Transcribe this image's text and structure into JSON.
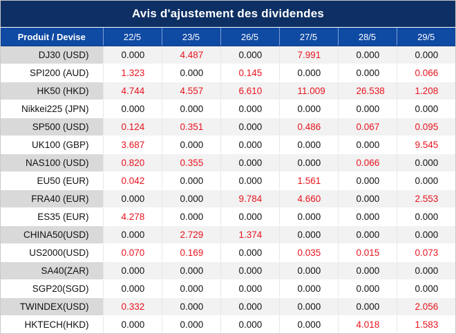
{
  "title": "Avis d'ajustement des dividendes",
  "columns": {
    "product": "Produit / Devise",
    "dates": [
      "22/5",
      "23/5",
      "26/5",
      "27/5",
      "28/5",
      "29/5"
    ]
  },
  "colors": {
    "title_bg": "#0d2f63",
    "header_bg": "#0f4aa3",
    "nonzero_value": "#e8131d",
    "zero_value": "#111111"
  },
  "rows": [
    {
      "product": "DJ30 (USD)",
      "values": [
        "0.000",
        "4.487",
        "0.000",
        "7.991",
        "0.000",
        "0.000"
      ]
    },
    {
      "product": "SPI200 (AUD)",
      "values": [
        "1.323",
        "0.000",
        "0.145",
        "0.000",
        "0.000",
        "0.066"
      ]
    },
    {
      "product": "HK50 (HKD)",
      "values": [
        "4.744",
        "4.557",
        "6.610",
        "11.009",
        "26.538",
        "1.208"
      ]
    },
    {
      "product": "Nikkei225 (JPN)",
      "values": [
        "0.000",
        "0.000",
        "0.000",
        "0.000",
        "0.000",
        "0.000"
      ]
    },
    {
      "product": "SP500 (USD)",
      "values": [
        "0.124",
        "0.351",
        "0.000",
        "0.486",
        "0.067",
        "0.095"
      ]
    },
    {
      "product": "UK100 (GBP)",
      "values": [
        "3.687",
        "0.000",
        "0.000",
        "0.000",
        "0.000",
        "9.545"
      ]
    },
    {
      "product": "NAS100 (USD)",
      "values": [
        "0.820",
        "0.355",
        "0.000",
        "0.000",
        "0.066",
        "0.000"
      ]
    },
    {
      "product": "EU50 (EUR)",
      "values": [
        "0.042",
        "0.000",
        "0.000",
        "1.561",
        "0.000",
        "0.000"
      ]
    },
    {
      "product": "FRA40 (EUR)",
      "values": [
        "0.000",
        "0.000",
        "9.784",
        "4.660",
        "0.000",
        "2.553"
      ]
    },
    {
      "product": "ES35 (EUR)",
      "values": [
        "4.278",
        "0.000",
        "0.000",
        "0.000",
        "0.000",
        "0.000"
      ]
    },
    {
      "product": "CHINA50(USD)",
      "values": [
        "0.000",
        "2.729",
        "1.374",
        "0.000",
        "0.000",
        "0.000"
      ]
    },
    {
      "product": "US2000(USD)",
      "values": [
        "0.070",
        "0.169",
        "0.000",
        "0.035",
        "0.015",
        "0.073"
      ]
    },
    {
      "product": "SA40(ZAR)",
      "values": [
        "0.000",
        "0.000",
        "0.000",
        "0.000",
        "0.000",
        "0.000"
      ]
    },
    {
      "product": "SGP20(SGD)",
      "values": [
        "0.000",
        "0.000",
        "0.000",
        "0.000",
        "0.000",
        "0.000"
      ]
    },
    {
      "product": "TWINDEX(USD)",
      "values": [
        "0.332",
        "0.000",
        "0.000",
        "0.000",
        "0.000",
        "2.056"
      ]
    },
    {
      "product": "HKTECH(HKD)",
      "values": [
        "0.000",
        "0.000",
        "0.000",
        "0.000",
        "4.018",
        "1.583"
      ]
    }
  ]
}
